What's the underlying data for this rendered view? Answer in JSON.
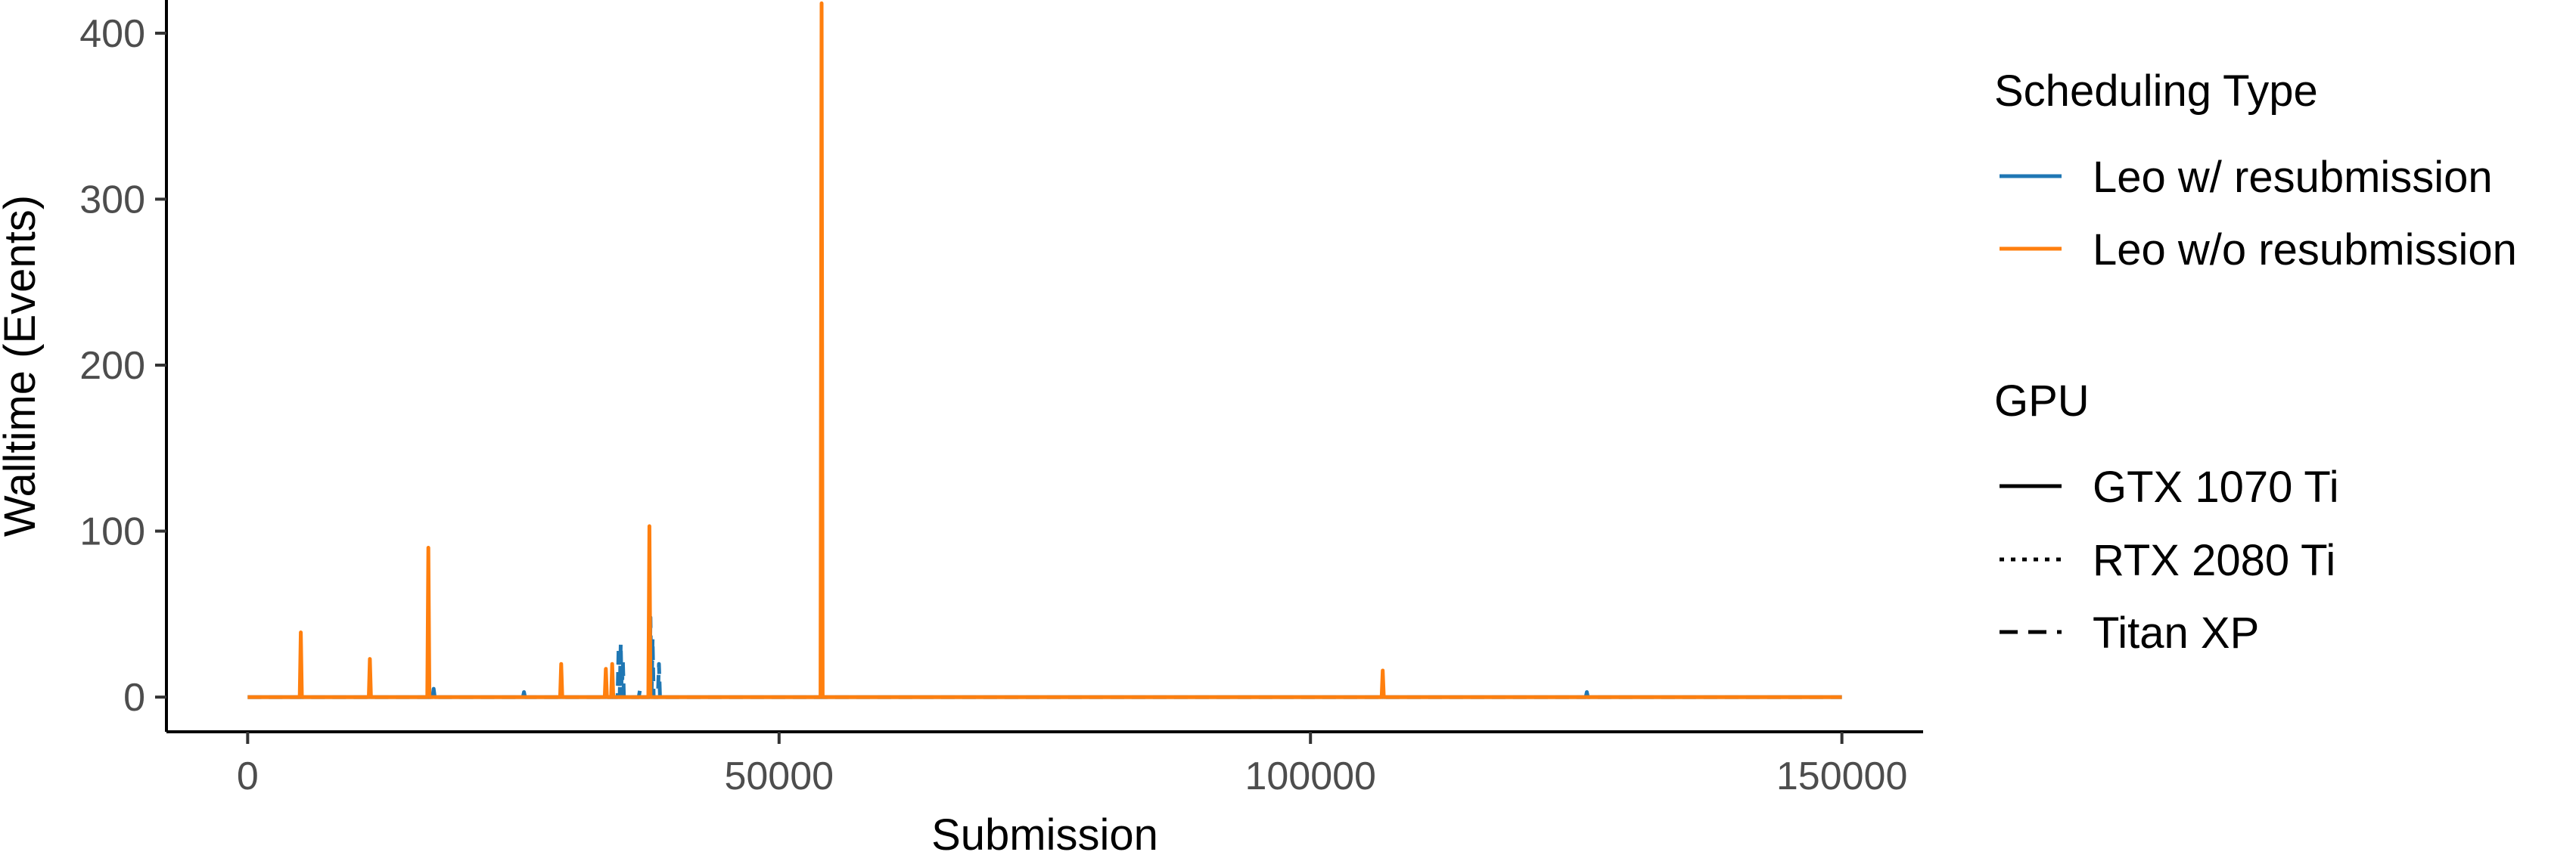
{
  "chart_data": {
    "type": "line",
    "title": "",
    "xlabel": "Submission",
    "ylabel": "Walltime (Events)",
    "xlim": [
      -7500,
      157500
    ],
    "ylim": [
      -20,
      420
    ],
    "xticks": [
      0,
      50000,
      100000,
      150000
    ],
    "xtick_labels": [
      "0",
      "50000",
      "100000",
      "150000"
    ],
    "yticks": [
      0,
      100,
      200,
      300,
      400
    ],
    "ytick_labels": [
      "0",
      "100",
      "200",
      "300",
      "400"
    ],
    "grid": false,
    "legend_placement": "right",
    "legends": [
      {
        "title": "Scheduling Type",
        "entries": [
          {
            "label": "Leo w/ resubmission",
            "color": "#1f77b4",
            "linetype": "solid"
          },
          {
            "label": "Leo w/o resubmission",
            "color": "#ff7f0e",
            "linetype": "solid"
          }
        ]
      },
      {
        "title": "GPU",
        "entries": [
          {
            "label": "GTX 1070 Ti",
            "color": "#000000",
            "linetype": "solid"
          },
          {
            "label": "RTX 2080 Ti",
            "color": "#000000",
            "linetype": "dotted"
          },
          {
            "label": "Titan XP",
            "color": "#000000",
            "linetype": "dashed"
          }
        ]
      }
    ],
    "series": [
      {
        "scheduling": "Leo w/ resubmission",
        "gpu": "Titan XP",
        "color": "#1f77b4",
        "linetype": "dashed",
        "points": [
          [
            0,
            0
          ],
          [
            34800,
            0
          ],
          [
            34900,
            30
          ],
          [
            35000,
            0
          ],
          [
            35100,
            32
          ],
          [
            35200,
            0
          ],
          [
            35300,
            22
          ],
          [
            35400,
            0
          ],
          [
            36800,
            0
          ],
          [
            36900,
            4
          ],
          [
            37000,
            0
          ],
          [
            37800,
            0
          ],
          [
            37900,
            48
          ],
          [
            38000,
            0
          ],
          [
            38100,
            35
          ],
          [
            38200,
            0
          ],
          [
            38600,
            0
          ],
          [
            38700,
            20
          ],
          [
            38800,
            0
          ],
          [
            150000,
            0
          ]
        ]
      },
      {
        "scheduling": "Leo w/ resubmission",
        "gpu": "GTX 1070 Ti",
        "color": "#1f77b4",
        "linetype": "solid",
        "points": [
          [
            0,
            0
          ],
          [
            17400,
            0
          ],
          [
            17500,
            5
          ],
          [
            17600,
            0
          ],
          [
            25900,
            0
          ],
          [
            26000,
            3
          ],
          [
            26100,
            0
          ],
          [
            125900,
            0
          ],
          [
            126000,
            3
          ],
          [
            126100,
            0
          ],
          [
            150000,
            0
          ]
        ]
      },
      {
        "scheduling": "Leo w/o resubmission",
        "gpu": "GTX 1070 Ti",
        "color": "#ff7f0e",
        "linetype": "solid",
        "points": [
          [
            0,
            0
          ],
          [
            4900,
            0
          ],
          [
            5000,
            39
          ],
          [
            5100,
            0
          ],
          [
            11400,
            0
          ],
          [
            11500,
            23
          ],
          [
            11600,
            0
          ],
          [
            16900,
            0
          ],
          [
            17000,
            90
          ],
          [
            17100,
            0
          ],
          [
            29400,
            0
          ],
          [
            29500,
            20
          ],
          [
            29600,
            0
          ],
          [
            33600,
            0
          ],
          [
            33700,
            17
          ],
          [
            33800,
            0
          ],
          [
            34200,
            0
          ],
          [
            34300,
            20
          ],
          [
            34400,
            0
          ],
          [
            37700,
            0
          ],
          [
            37800,
            103
          ],
          [
            37900,
            0
          ],
          [
            53900,
            0
          ],
          [
            54000,
            418
          ],
          [
            54100,
            0
          ],
          [
            106700,
            0
          ],
          [
            106800,
            16
          ],
          [
            106900,
            0
          ],
          [
            150000,
            0
          ]
        ]
      }
    ]
  }
}
